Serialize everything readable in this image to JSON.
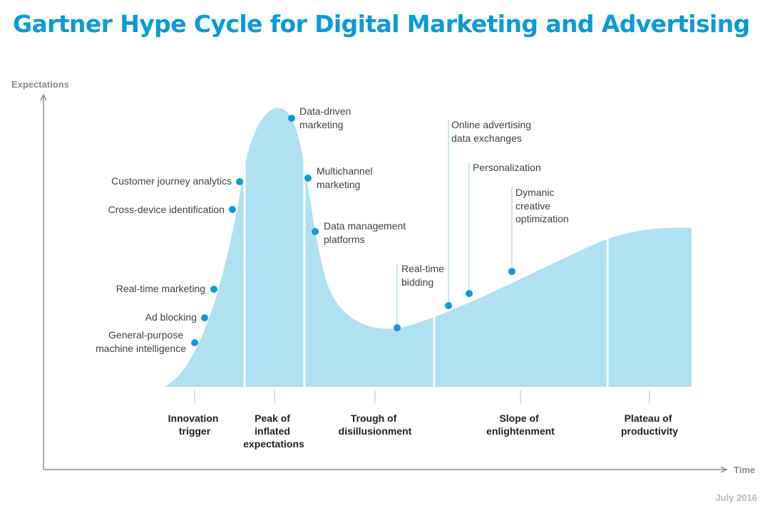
{
  "title": "Gartner Hype Cycle for Digital Marketing and Advertising",
  "axes": {
    "y_label": "Expectations",
    "x_label": "Time"
  },
  "date": "July 2016",
  "colors": {
    "title": "#0a9ad8",
    "curve_fill": "#b0e1f2",
    "marker": "#0f9bd7",
    "leader": "#8ed2ee"
  },
  "phases": [
    {
      "lines": [
        "Innovation",
        "trigger"
      ]
    },
    {
      "lines": [
        "Peak of",
        "inflated",
        "expectations"
      ]
    },
    {
      "lines": [
        "Trough of",
        "disillusionment"
      ]
    },
    {
      "lines": [
        "Slope of",
        "enlightenment"
      ]
    },
    {
      "lines": [
        "Plateau of",
        "productivity"
      ]
    }
  ],
  "technologies": [
    {
      "lines": [
        "General-purpose",
        "machine intelligence"
      ]
    },
    {
      "lines": [
        "Ad blocking"
      ]
    },
    {
      "lines": [
        "Real-time marketing"
      ]
    },
    {
      "lines": [
        "Cross-device identification"
      ]
    },
    {
      "lines": [
        "Customer journey analytics"
      ]
    },
    {
      "lines": [
        "Data-driven",
        "marketing"
      ]
    },
    {
      "lines": [
        "Multichannel",
        "marketing"
      ]
    },
    {
      "lines": [
        "Data management",
        "platforms"
      ]
    },
    {
      "lines": [
        "Real-time",
        "bidding"
      ]
    },
    {
      "lines": [
        "Online advertising",
        "data exchanges"
      ]
    },
    {
      "lines": [
        "Personalization"
      ]
    },
    {
      "lines": [
        "Dymanic",
        "creative",
        "optimization"
      ]
    }
  ]
}
